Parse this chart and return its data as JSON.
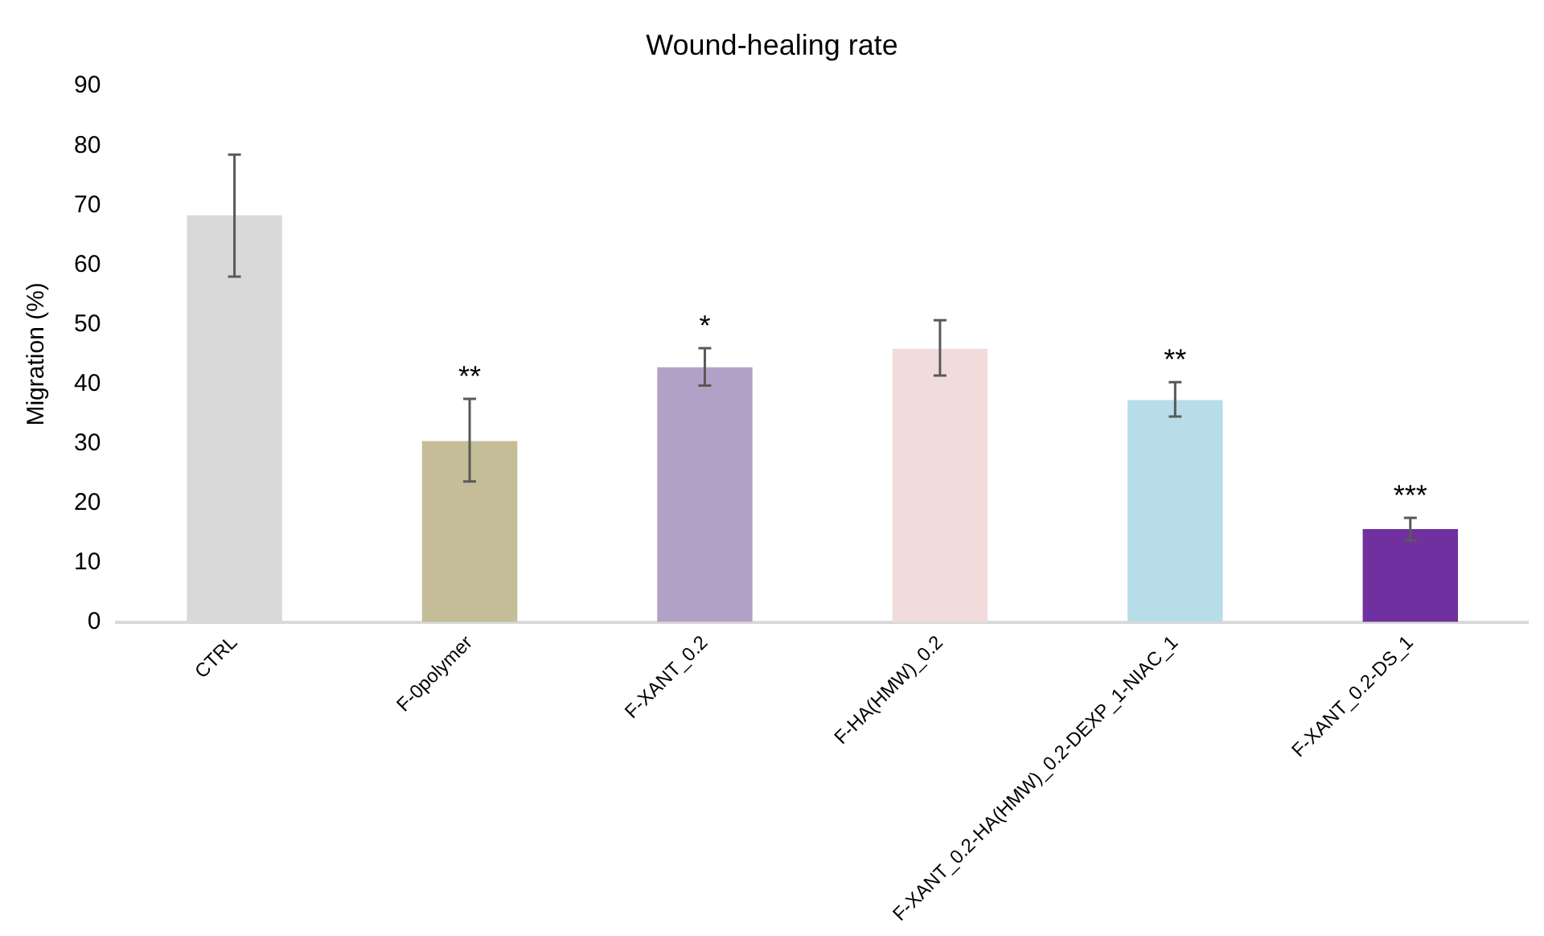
{
  "chart_data": {
    "type": "bar",
    "title": "Wound-healing rate",
    "ylabel": "Migration (%)",
    "categories": [
      "CTRL",
      "F-0polymer",
      "F-XANT_0.2",
      "F-HA(HMW)_0.2",
      "F-XANT_0.2-HA(HMW)_0.2-DEXP_1-NIAC_1",
      "F-XANT_0.2-DS_1"
    ],
    "values": [
      68.3,
      30.4,
      42.8,
      45.9,
      37.3,
      15.6
    ],
    "colors": [
      "#d9d9d9",
      "#c4bd97",
      "#b2a1c7",
      "#f2dcdb",
      "#b7dee8",
      "#7030a0"
    ],
    "errors": [
      [
        58,
        78.5
      ],
      [
        23.6,
        37.5
      ],
      [
        39.7,
        46
      ],
      [
        41.4,
        50.7
      ],
      [
        34.5,
        40.3
      ],
      [
        13.7,
        17.5
      ]
    ],
    "ylim": [
      0,
      90
    ],
    "yticks": [
      0,
      10,
      20,
      30,
      40,
      50,
      60,
      70,
      80,
      90
    ],
    "grid": false,
    "legend": false,
    "annotations": [
      {
        "text": "**",
        "x": "F-0polymer",
        "y": 37.5
      },
      {
        "text": "*",
        "x": "F-XANT_0.2",
        "y": 46
      },
      {
        "text": "**",
        "x": "F-XANT_0.2-HA(HMW)_0.2-DEXP_1-NIAC_1",
        "y": 40.3
      },
      {
        "text": "***",
        "x": "F-XANT_0.2-DS_1",
        "y": 17.5
      }
    ]
  }
}
